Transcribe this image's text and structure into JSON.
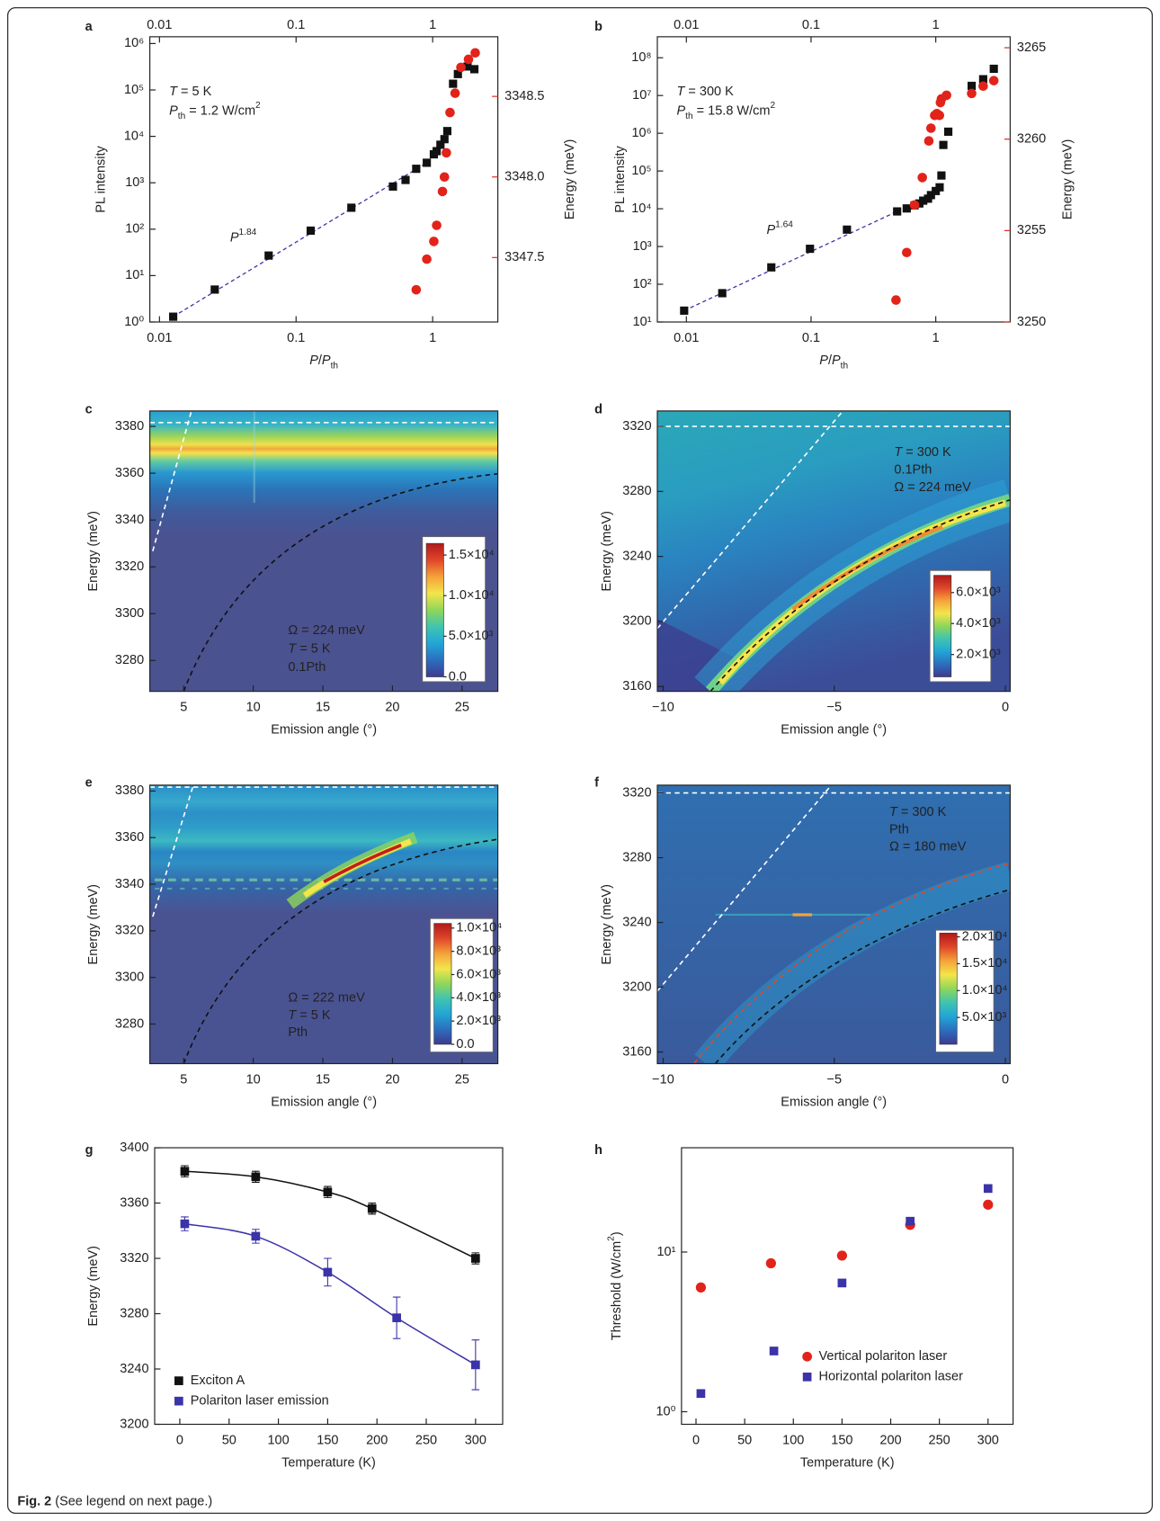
{
  "chart_data": [
    {
      "type": "scatter",
      "label": "a",
      "xscale": "log",
      "yscale": "log",
      "xlim": [
        0.0085,
        3
      ],
      "ylim": [
        1,
        1400000
      ],
      "xticks": [
        0.01,
        0.1,
        1
      ],
      "xtick_top": true,
      "yticks": [
        {
          "value": 1,
          "label": "10⁰"
        },
        {
          "value": 10,
          "label": "10¹"
        },
        {
          "value": 100,
          "label": "10²"
        },
        {
          "value": 1000,
          "label": "10³"
        },
        {
          "value": 10000,
          "label": "10⁴"
        },
        {
          "value": 100000,
          "label": "10⁵"
        },
        {
          "value": 1000000,
          "label": "10⁶"
        }
      ],
      "y2lim": [
        3347.1,
        3348.87
      ],
      "y2ticks": [
        3347.5,
        {
          "value": 3348,
          "label": "3348.0"
        },
        3348.5
      ],
      "y2color": "#e2231a",
      "xlabel": [
        {
          "text": "P",
          "style": "i"
        },
        {
          "text": "/"
        },
        {
          "text": "P",
          "style": "i"
        },
        {
          "text": "th",
          "style": "sub"
        }
      ],
      "ylabel": "PL intensity",
      "y2label": "Energy (meV)",
      "annotations": [
        [
          {
            "text": "T",
            "style": "i"
          },
          {
            "text": " = 5 K"
          }
        ],
        [
          {
            "text": "P",
            "style": "i"
          },
          {
            "text": "th",
            "style": "sub"
          },
          {
            "text": " = 1.2 W/cm"
          },
          {
            "text": "2",
            "style": "sup"
          }
        ]
      ],
      "annotation_color": "#222",
      "fit": {
        "x": [
          0.0126,
          0.906
        ],
        "values": [
          1.3,
          2700
        ],
        "color": "#3b33a8",
        "label": [
          {
            "text": "P",
            "style": "i"
          },
          {
            "text": "1.84",
            "style": "sup"
          }
        ]
      },
      "series": [
        {
          "marker": "square",
          "color": "#111111",
          "x": [
            0.0126,
            0.0254,
            0.063,
            0.128,
            0.254,
            0.512,
            0.633,
            0.758,
            0.906,
            1.02,
            1.07,
            1.14,
            1.22,
            1.28,
            1.41,
            1.53,
            1.8,
            2.02
          ],
          "values": [
            1.3,
            5,
            27,
            93,
            290,
            830,
            1150,
            2000,
            2700,
            4100,
            4800,
            6600,
            8700,
            13000,
            136000,
            220000,
            320000,
            280000
          ]
        },
        {
          "marker": "circle",
          "color": "#e2231a",
          "axis": "y2",
          "x": [
            0.758,
            0.906,
            1.02,
            1.07,
            1.18,
            1.22,
            1.26,
            1.34,
            1.46,
            1.61,
            1.83,
            2.05
          ],
          "values": [
            3347.3,
            3347.49,
            3347.6,
            3347.7,
            3347.91,
            3348.0,
            3348.15,
            3348.4,
            3348.52,
            3348.68,
            3348.73,
            3348.77
          ]
        }
      ]
    },
    {
      "type": "scatter",
      "label": "b",
      "xscale": "log",
      "yscale": "log",
      "xlim": [
        0.00585,
        3.95
      ],
      "ylim": [
        10,
        360000000
      ],
      "xticks": [
        0.01,
        0.1,
        1
      ],
      "xtick_top": true,
      "yticks": [
        {
          "value": 10,
          "label": "10¹"
        },
        {
          "value": 100,
          "label": "10²"
        },
        {
          "value": 1000,
          "label": "10³"
        },
        {
          "value": 10000,
          "label": "10⁴"
        },
        {
          "value": 100000,
          "label": "10⁵"
        },
        {
          "value": 1000000,
          "label": "10⁶"
        },
        {
          "value": 10000000,
          "label": "10⁷"
        },
        {
          "value": 100000000,
          "label": "10⁸"
        }
      ],
      "y2lim": [
        3250,
        3265.6
      ],
      "y2ticks": [
        3250,
        3255,
        3260,
        3265
      ],
      "y2color": "#e2231a",
      "xlabel": [
        {
          "text": "P",
          "style": "i"
        },
        {
          "text": "/"
        },
        {
          "text": "P",
          "style": "i"
        },
        {
          "text": "th",
          "style": "sub"
        }
      ],
      "ylabel": "PL intensity",
      "y2label": "Energy (meV)",
      "annotations": [
        [
          {
            "text": "T",
            "style": "i"
          },
          {
            "text": " = 300 K"
          }
        ],
        [
          {
            "text": "P",
            "style": "i"
          },
          {
            "text": "th",
            "style": "sub"
          },
          {
            "text": " = 15.8 W/cm"
          },
          {
            "text": "2",
            "style": "sup"
          }
        ]
      ],
      "annotation_color": "#222",
      "fit": {
        "x": [
          0.0096,
          0.49
        ],
        "values": [
          20,
          8500
        ],
        "color": "#3b33a8",
        "label": [
          {
            "text": "P",
            "style": "i"
          },
          {
            "text": "1.64",
            "style": "sup"
          }
        ]
      },
      "series": [
        {
          "marker": "square",
          "color": "#111111",
          "x": [
            0.0096,
            0.0194,
            0.048,
            0.098,
            0.194,
            0.49,
            0.585,
            0.675,
            0.738,
            0.793,
            0.867,
            0.915,
            1.0,
            1.074,
            1.11,
            1.15,
            1.26,
            1.94,
            2.4,
            2.92
          ],
          "values": [
            20,
            58,
            280,
            870,
            2800,
            8500,
            10200,
            12300,
            13800,
            16400,
            18500,
            23000,
            29500,
            37000,
            76000,
            490000,
            1100000,
            18000000,
            27000000,
            51000000
          ]
        },
        {
          "marker": "circle",
          "color": "#e2231a",
          "axis": "y2",
          "x": [
            0.48,
            0.585,
            0.675,
            0.78,
            0.88,
            0.915,
            0.98,
            1.02,
            1.07,
            1.09,
            1.11,
            1.22,
            1.94,
            2.4,
            2.92
          ],
          "values": [
            3251.2,
            3253.8,
            3256.4,
            3257.9,
            3259.9,
            3260.6,
            3261.3,
            3261.4,
            3261.3,
            3262.0,
            3262.2,
            3262.4,
            3262.5,
            3262.9,
            3263.2
          ]
        }
      ]
    },
    {
      "type": "heatmap",
      "label": "c",
      "xlim": [
        2.57,
        27.57
      ],
      "ylim": [
        3266.8,
        3386.6
      ],
      "xticks": [
        5,
        10,
        15,
        20,
        25
      ],
      "yticks": [
        3280,
        3300,
        3320,
        3340,
        3360,
        3380
      ],
      "xlabel": "Emission angle (°)",
      "ylabel": "Energy (meV)",
      "annotations": [
        [
          {
            "text": "Ω = 224 meV"
          }
        ],
        [
          {
            "text": "T",
            "style": "i"
          },
          {
            "text": " = 5 K"
          }
        ],
        [
          {
            "text": "0.1Pth"
          }
        ]
      ],
      "annotation_color": "#ffffff",
      "colormap": [
        "#3e3a8f",
        "#2c6ebd",
        "#22a5d6",
        "#3fc4b0",
        "#8fd65a",
        "#f3e54a",
        "#f5a23a",
        "#e0462a",
        "#b01a1a"
      ],
      "colorbar": {
        "lim": [
          0,
          16430
        ],
        "ticks": [
          {
            "value": 0,
            "label": "0.0"
          },
          {
            "value": 5000,
            "label": "5.0×10³"
          },
          {
            "value": 10000,
            "label": "1.0×10⁴"
          },
          {
            "value": 15000,
            "label": "1.5×10⁴"
          }
        ]
      }
    },
    {
      "type": "heatmap",
      "label": "d",
      "xlim": [
        -10.17,
        0.14
      ],
      "ylim": [
        3157,
        3329.5
      ],
      "xticks": [
        {
          "value": -10,
          "label": "−10"
        },
        {
          "value": -5,
          "label": "−5"
        },
        0
      ],
      "yticks": [
        3160,
        3200,
        3240,
        3280,
        3320
      ],
      "xlabel": "Emission angle (°)",
      "ylabel": "Energy (meV)",
      "annotations": [
        [
          {
            "text": "T",
            "style": "i"
          },
          {
            "text": " = 300 K"
          }
        ],
        [
          {
            "text": "0.1Pth"
          }
        ],
        [
          {
            "text": "Ω = 224 meV"
          }
        ]
      ],
      "annotation_color": "#111111",
      "colormap": [
        "#3e3a8f",
        "#2c6ebd",
        "#22a5d6",
        "#3fc4b0",
        "#8fd65a",
        "#f3e54a",
        "#f5a23a",
        "#e0462a",
        "#b01a1a"
      ],
      "colorbar": {
        "lim": [
          560,
          7110
        ],
        "ticks": [
          {
            "value": 2000,
            "label": "2.0×10³"
          },
          {
            "value": 4000,
            "label": "4.0×10³"
          },
          {
            "value": 6000,
            "label": "6.0×10³"
          }
        ]
      }
    },
    {
      "type": "heatmap",
      "label": "e",
      "xlim": [
        2.57,
        27.57
      ],
      "ylim": [
        3263,
        3382.5
      ],
      "xticks": [
        5,
        10,
        15,
        20,
        25
      ],
      "yticks": [
        3280,
        3300,
        3320,
        3340,
        3360,
        3380
      ],
      "xlabel": "Emission angle (°)",
      "ylabel": "Energy (meV)",
      "annotations": [
        [
          {
            "text": "Ω = 222 meV"
          }
        ],
        [
          {
            "text": "T",
            "style": "i"
          },
          {
            "text": " = 5 K"
          }
        ],
        [
          {
            "text": "Pth"
          }
        ]
      ],
      "annotation_color": "#ffffff",
      "colormap": [
        "#3e3a8f",
        "#2c6ebd",
        "#22a5d6",
        "#3fc4b0",
        "#8fd65a",
        "#f3e54a",
        "#f5a23a",
        "#e0462a",
        "#b01a1a"
      ],
      "colorbar": {
        "lim": [
          0,
          10400
        ],
        "ticks": [
          {
            "value": 0,
            "label": "0.0"
          },
          {
            "value": 2000,
            "label": "2.0×10³"
          },
          {
            "value": 4000,
            "label": "4.0×10³"
          },
          {
            "value": 6000,
            "label": "6.0×10³"
          },
          {
            "value": 8000,
            "label": "8.0×10³"
          },
          {
            "value": 10000,
            "label": "1.0×10⁴"
          }
        ]
      }
    },
    {
      "type": "heatmap",
      "label": "f",
      "xlim": [
        -10.17,
        0.14
      ],
      "ylim": [
        3152.8,
        3324.8
      ],
      "xticks": [
        {
          "value": -10,
          "label": "−10"
        },
        {
          "value": -5,
          "label": "−5"
        },
        0
      ],
      "yticks": [
        3160,
        3200,
        3240,
        3280,
        3320
      ],
      "xlabel": "Emission angle (°)",
      "ylabel": "Energy (meV)",
      "annotations": [
        [
          {
            "text": "T",
            "style": "i"
          },
          {
            "text": " = 300 K"
          }
        ],
        [
          {
            "text": "Pth"
          }
        ],
        [
          {
            "text": "Ω = 180 meV"
          }
        ]
      ],
      "annotation_color": "#ffffff",
      "colormap": [
        "#3e3a8f",
        "#2c6ebd",
        "#22a5d6",
        "#3fc4b0",
        "#8fd65a",
        "#f3e54a",
        "#f5a23a",
        "#e0462a",
        "#b01a1a"
      ],
      "colorbar": {
        "lim": [
          0,
          20700
        ],
        "ticks": [
          {
            "value": 5000,
            "label": "5.0×10³"
          },
          {
            "value": 10000,
            "label": "1.0×10⁴"
          },
          {
            "value": 15000,
            "label": "1.5×10⁴"
          },
          {
            "value": 20000,
            "label": "2.0×10⁴"
          }
        ]
      }
    },
    {
      "type": "line",
      "label": "g",
      "xlim": [
        -25.5,
        327.5
      ],
      "ylim": [
        3200,
        3400
      ],
      "xticks": [
        0,
        50,
        100,
        150,
        200,
        250,
        300
      ],
      "yticks": [
        3200,
        3240,
        3280,
        3320,
        3360,
        3400
      ],
      "xlabel": "Temperature (K)",
      "ylabel": "Energy (meV)",
      "smooth": true,
      "series": [
        {
          "name": "Exciton A",
          "marker": "square",
          "color": "#111111",
          "x": [
            5,
            77,
            150,
            195,
            300
          ],
          "values": [
            3383,
            3379,
            3368,
            3356,
            3320
          ],
          "errors": [
            4,
            4,
            4,
            4,
            4
          ]
        },
        {
          "name": "Polariton laser emission",
          "marker": "square",
          "color": "#3b33a8",
          "x": [
            5,
            77,
            150,
            220,
            300
          ],
          "values": [
            3345,
            3336,
            3310,
            3277,
            3243
          ],
          "errors": [
            5,
            5,
            10,
            15,
            18
          ]
        }
      ]
    },
    {
      "type": "scatter",
      "label": "h",
      "yscale": "log",
      "xlim": [
        -14.9,
        325.7
      ],
      "ylim": [
        0.834,
        45
      ],
      "xticks": [
        0,
        50,
        100,
        150,
        200,
        250,
        300
      ],
      "yticks": [
        {
          "value": 1,
          "label": "10⁰"
        },
        {
          "value": 10,
          "label": "10¹"
        }
      ],
      "xlabel": "Temperature (K)",
      "ylabel": [
        {
          "text": "Threshold (W/cm"
        },
        {
          "text": "2",
          "style": "sup"
        },
        {
          "text": ")"
        }
      ],
      "series": [
        {
          "name": "Vertical polariton laser",
          "marker": "circle",
          "color": "#e2231a",
          "x": [
            5,
            77,
            150,
            220,
            300
          ],
          "values": [
            6.0,
            8.5,
            9.5,
            14.8,
            19.8
          ]
        },
        {
          "name": "Horizontal polariton laser",
          "marker": "square",
          "color": "#3b33a8",
          "x": [
            5,
            80,
            150,
            220,
            300
          ],
          "values": [
            1.3,
            2.4,
            6.4,
            15.6,
            25
          ]
        }
      ]
    }
  ],
  "caption": [
    {
      "text": "Fig. 2",
      "style": "b"
    },
    {
      "text": " (See legend on next page.)"
    }
  ]
}
